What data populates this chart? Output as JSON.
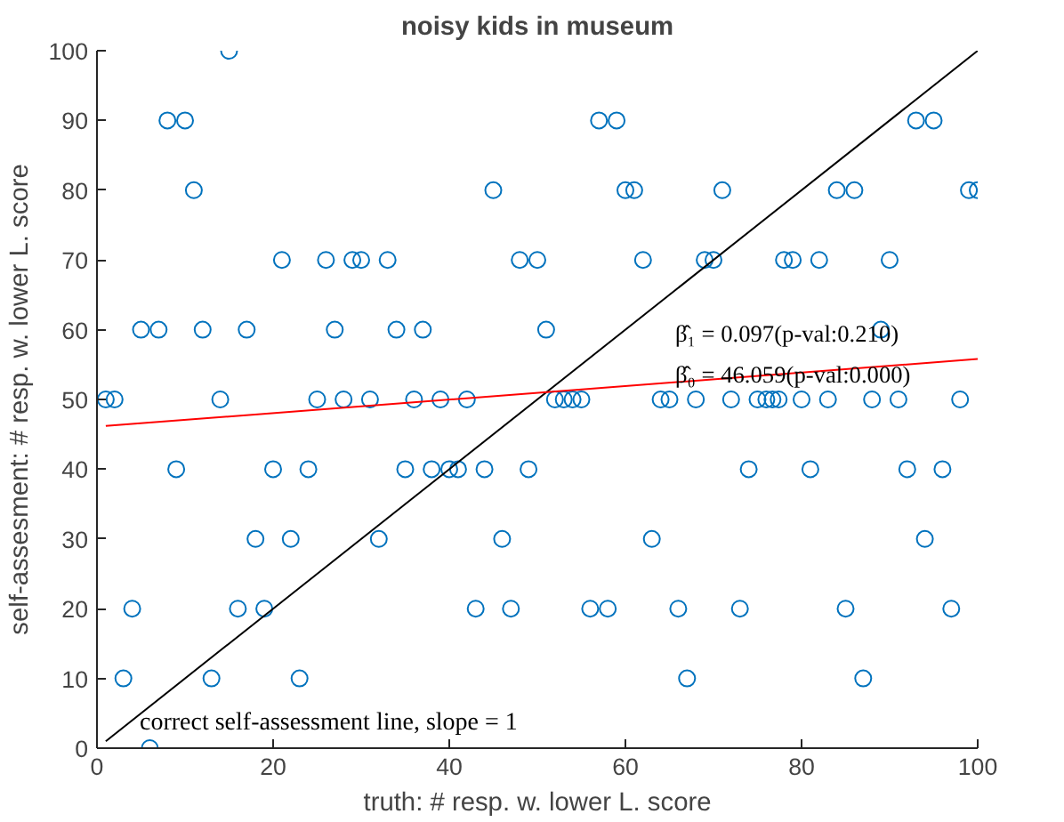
{
  "chart_data": {
    "type": "scatter",
    "title": "noisy kids in museum",
    "xlabel": "truth: # resp. w. lower L. score",
    "ylabel": "self-assesment: # resp. w. lower L. score",
    "xlim": [
      0,
      100
    ],
    "ylim": [
      0,
      100
    ],
    "xticks": [
      0,
      20,
      40,
      60,
      80,
      100
    ],
    "yticks": [
      0,
      10,
      20,
      30,
      40,
      50,
      60,
      70,
      80,
      90,
      100
    ],
    "grid": false,
    "series": [
      {
        "marker": "circle",
        "color": "#0072bd",
        "x": [
          1,
          2,
          3,
          4,
          5,
          6,
          7,
          8,
          9,
          10,
          11,
          12,
          13,
          14,
          15,
          16,
          17,
          18,
          19,
          20,
          21,
          22,
          23,
          24,
          25,
          26,
          27,
          28,
          29,
          30,
          31,
          32,
          33,
          34,
          35,
          36,
          37,
          38,
          39,
          40,
          41,
          42,
          43,
          44,
          45,
          46,
          47,
          48,
          49,
          50,
          51,
          52,
          53,
          54,
          55,
          56,
          57,
          58,
          59,
          60,
          61,
          62,
          63,
          64,
          65,
          66,
          67,
          68,
          69,
          70,
          71,
          72,
          73,
          74,
          75,
          76,
          76.7,
          77.4,
          78,
          79,
          80,
          81,
          82,
          83,
          84,
          85,
          86,
          87,
          88,
          89,
          90,
          91,
          92,
          93,
          94,
          95,
          96,
          97,
          98,
          99,
          100
        ],
        "values": [
          50,
          50,
          10,
          20,
          60,
          0,
          60,
          90,
          40,
          90,
          80,
          60,
          10,
          50,
          100,
          20,
          60,
          30,
          20,
          40,
          70,
          30,
          10,
          40,
          50,
          70,
          60,
          50,
          70,
          70,
          50,
          30,
          70,
          60,
          40,
          50,
          60,
          40,
          50,
          40,
          40,
          50,
          20,
          40,
          80,
          30,
          20,
          70,
          40,
          70,
          60,
          50,
          50,
          50,
          50,
          20,
          90,
          20,
          90,
          80,
          80,
          70,
          30,
          50,
          50,
          20,
          10,
          50,
          70,
          70,
          80,
          50,
          20,
          40,
          50,
          50,
          50,
          50,
          70,
          70,
          50,
          40,
          70,
          50,
          80,
          20,
          80,
          10,
          50,
          60,
          70,
          50,
          40,
          90,
          30,
          90,
          40,
          20,
          50,
          80,
          80
        ]
      },
      {
        "type": "line",
        "color": "#000000",
        "x": [
          1,
          100
        ],
        "values": [
          1,
          100
        ],
        "line_style": "solid"
      },
      {
        "type": "line",
        "color": "#ff0000",
        "x": [
          1,
          100
        ],
        "values": [
          46.2,
          55.8
        ],
        "line_style": "solid"
      }
    ],
    "annotations": [
      "correct self-assessment line, slope = 1",
      "β̂₁ = 0.097(p-val:0.210)",
      "β̂₀ = 46.059(p-val:0.000)"
    ]
  }
}
